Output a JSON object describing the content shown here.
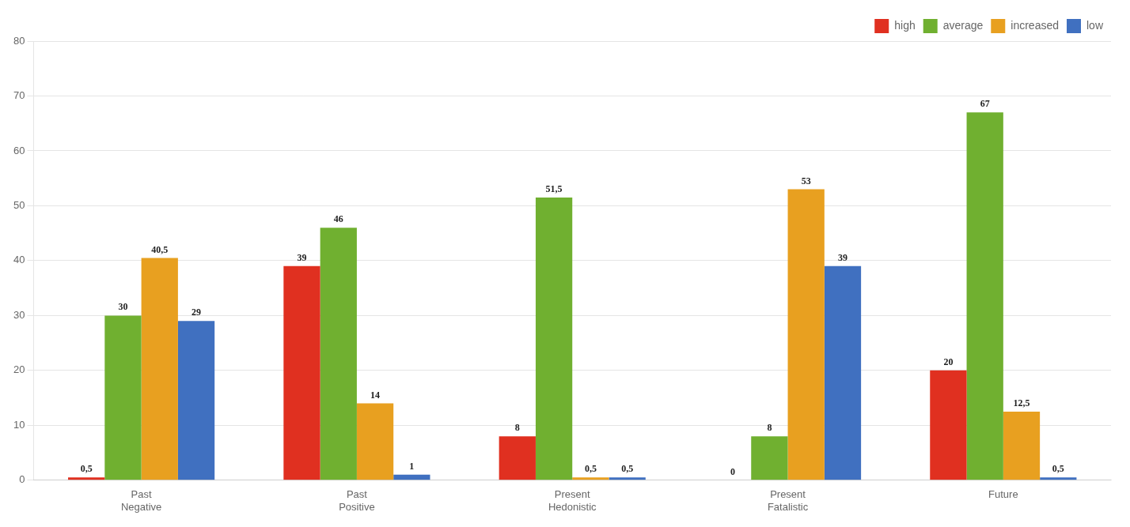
{
  "chart_data": {
    "type": "bar",
    "categories": [
      "Past\nNegative",
      "Past\nPositive",
      "Present\nHedonistic",
      "Present\nFatalistic",
      "Future"
    ],
    "series": [
      {
        "name": "high",
        "color": "#e03020",
        "values": [
          0.5,
          39,
          8,
          0,
          20
        ],
        "value_labels": [
          "0,5",
          "39",
          "8",
          "0",
          "20"
        ]
      },
      {
        "name": "average",
        "color": "#70b030",
        "values": [
          30,
          46,
          51.5,
          8,
          67
        ],
        "value_labels": [
          "30",
          "46",
          "51,5",
          "8",
          "67"
        ]
      },
      {
        "name": "increased",
        "color": "#e8a020",
        "values": [
          40.5,
          14,
          0.5,
          53,
          12.5
        ],
        "value_labels": [
          "40,5",
          "14",
          "0,5",
          "53",
          "12,5"
        ]
      },
      {
        "name": "low",
        "color": "#4070c0",
        "values": [
          29,
          1,
          0.5,
          39,
          0.5
        ],
        "value_labels": [
          "29",
          "1",
          "0,5",
          "39",
          "0,5"
        ]
      }
    ],
    "ylim": [
      0,
      80
    ],
    "yticks": [
      0,
      10,
      20,
      30,
      40,
      50,
      60,
      70,
      80
    ],
    "grid": true,
    "legend": "upper right",
    "data_labels": true
  }
}
